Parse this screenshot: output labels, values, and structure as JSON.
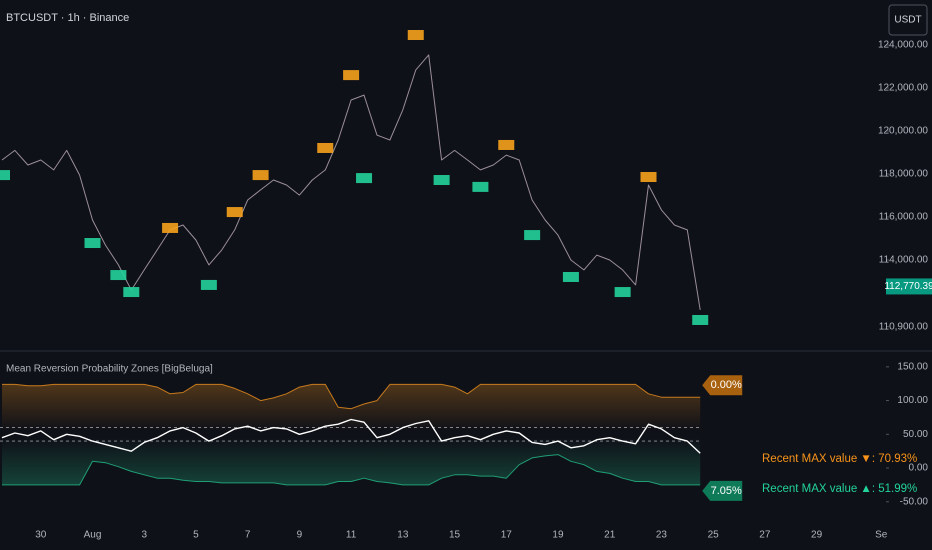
{
  "header": {
    "title": "BTCUSDT · 1h · Binance",
    "currency": "USDT"
  },
  "chart_data": [
    {
      "type": "line",
      "ylim": [
        109814,
        126093
      ],
      "yticks": [
        {
          "value": 124000,
          "label": "124,000.00"
        },
        {
          "value": 122000,
          "label": "122,000.00"
        },
        {
          "value": 120000,
          "label": "120,000.00"
        },
        {
          "value": 118000,
          "label": "118,000.00"
        },
        {
          "value": 116000,
          "label": "116,000.00"
        },
        {
          "value": 114000,
          "label": "114,000.00"
        },
        {
          "value": 110900,
          "label": "110,900.00"
        }
      ],
      "last_price": {
        "value": 112770.39,
        "label": "112,770.39"
      },
      "series": [
        {
          "color": "#9b8e99",
          "values": [
            118650,
            119100,
            118420,
            118650,
            118190,
            119100,
            117950,
            115860,
            114700,
            113770,
            112600,
            113540,
            114470,
            115400,
            115630,
            114930,
            113770,
            114470,
            115400,
            116790,
            117260,
            117720,
            117490,
            117020,
            117720,
            118190,
            119580,
            121440,
            121670,
            119810,
            119580,
            120980,
            122840,
            123540,
            118650,
            119100,
            118650,
            118190,
            118420,
            118880,
            118650,
            116790,
            115860,
            115160,
            114000,
            113540,
            114230,
            114000,
            113540,
            112840,
            117490,
            116330,
            115630,
            115400,
            111680,
            null,
            null,
            null,
            null,
            null,
            null,
            null,
            null,
            null,
            null,
            null,
            null,
            null,
            null
          ]
        },
        {
          "color": "#f7a21b",
          "marker": true,
          "values": [
            null,
            null,
            null,
            null,
            null,
            null,
            null,
            null,
            null,
            null,
            null,
            null,
            null,
            115490,
            null,
            null,
            null,
            null,
            116230,
            null,
            117950,
            null,
            null,
            null,
            null,
            119210,
            null,
            122600,
            null,
            null,
            null,
            null,
            124465,
            null,
            null,
            null,
            null,
            null,
            null,
            119350,
            null,
            null,
            null,
            null,
            null,
            null,
            null,
            null,
            null,
            null,
            117860,
            null,
            null,
            null,
            null,
            null,
            null,
            null,
            null,
            null,
            null,
            null,
            null,
            null,
            null,
            null,
            null,
            null,
            null
          ]
        },
        {
          "color": "#22d39a",
          "marker": true,
          "values": [
            117950,
            null,
            null,
            null,
            null,
            null,
            null,
            114790,
            null,
            113300,
            112510,
            null,
            null,
            null,
            null,
            null,
            112840,
            null,
            null,
            null,
            null,
            null,
            null,
            null,
            null,
            null,
            null,
            null,
            117810,
            null,
            null,
            null,
            null,
            null,
            117720,
            null,
            null,
            117400,
            null,
            null,
            null,
            115160,
            null,
            null,
            113210,
            null,
            null,
            null,
            112510,
            null,
            null,
            null,
            null,
            null,
            111210,
            null,
            null,
            null,
            null,
            null,
            null,
            null,
            null,
            null,
            null,
            null,
            null,
            null,
            null
          ]
        }
      ]
    },
    {
      "type": "line",
      "title": "Mean Reversion Probability Zones [BigBeluga]",
      "categories": [
        null,
        null,
        null,
        "30",
        null,
        null,
        null,
        "Aug",
        null,
        null,
        null,
        "3",
        null,
        null,
        null,
        "5",
        null,
        null,
        null,
        "7",
        null,
        null,
        null,
        "9",
        null,
        null,
        null,
        "11",
        null,
        null,
        null,
        "13",
        null,
        null,
        null,
        "15",
        null,
        null,
        null,
        "17",
        null,
        null,
        null,
        "19",
        null,
        null,
        null,
        "21",
        null,
        null,
        null,
        "23",
        null,
        null,
        null,
        "25",
        null,
        null,
        null,
        "27",
        null,
        null,
        null,
        "29",
        null,
        null,
        null,
        null,
        "Se"
      ],
      "ylim": [
        -77,
        172
      ],
      "yticks": [
        {
          "value": 150,
          "label": "150.00"
        },
        {
          "value": 100,
          "label": "100.00"
        },
        {
          "value": 50,
          "label": "50.00"
        },
        {
          "value": 0,
          "label": "0.00"
        },
        {
          "value": -50,
          "label": "-50.00"
        }
      ],
      "dashed_levels": [
        60,
        40
      ],
      "upper_tag": "0.00%",
      "lower_tag": "7.05%",
      "annotations": [
        "Recent MAX value ▼: 70.93%",
        "Recent MAX value ▲: 51.99%"
      ],
      "series": [
        {
          "color": "#c77a1c",
          "values": [
            124,
            124,
            122,
            122,
            124,
            124,
            124,
            124,
            124,
            124,
            124,
            124,
            120,
            110,
            112,
            124,
            124,
            124,
            118,
            110,
            100,
            104,
            110,
            120,
            124,
            124,
            90,
            88,
            95,
            100,
            124,
            124,
            124,
            124,
            124,
            120,
            110,
            124,
            124,
            124,
            124,
            124,
            124,
            124,
            124,
            124,
            124,
            124,
            124,
            124,
            110,
            105,
            105,
            105,
            105,
            null,
            null,
            null,
            null,
            null,
            null,
            null,
            null,
            null,
            null,
            null,
            null,
            null,
            null
          ]
        },
        {
          "color": "#ffffff",
          "values": [
            45,
            52,
            48,
            55,
            42,
            50,
            47,
            40,
            35,
            30,
            25,
            38,
            45,
            55,
            60,
            52,
            40,
            48,
            58,
            62,
            55,
            60,
            58,
            50,
            55,
            62,
            65,
            72,
            68,
            45,
            50,
            60,
            66,
            70,
            40,
            45,
            48,
            42,
            50,
            55,
            52,
            38,
            35,
            40,
            30,
            33,
            42,
            45,
            40,
            36,
            65,
            58,
            45,
            40,
            22,
            null,
            null,
            null,
            null,
            null,
            null,
            null,
            null,
            null,
            null,
            null,
            null,
            null,
            null
          ]
        },
        {
          "color": "#1f9e74",
          "values": [
            -25,
            -25,
            -25,
            -25,
            -25,
            -25,
            -25,
            10,
            8,
            2,
            -5,
            -10,
            -15,
            -15,
            -18,
            -20,
            -20,
            -22,
            -22,
            -22,
            -22,
            -22,
            -25,
            -25,
            -25,
            -25,
            -20,
            -20,
            -15,
            -20,
            -22,
            -25,
            -25,
            -25,
            -15,
            -10,
            -10,
            -12,
            -12,
            -15,
            5,
            15,
            18,
            20,
            10,
            5,
            -5,
            -8,
            -15,
            -20,
            -20,
            -25,
            -25,
            -25,
            -25,
            null,
            null,
            null,
            null,
            null,
            null,
            null,
            null,
            null,
            null,
            null,
            null,
            null,
            null
          ]
        }
      ]
    }
  ]
}
